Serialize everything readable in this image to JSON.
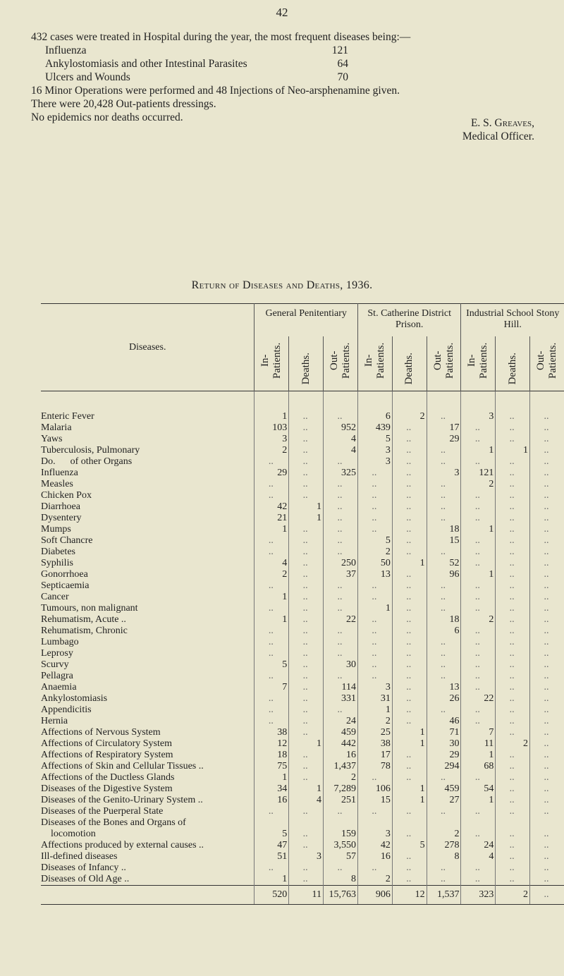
{
  "page_number": "42",
  "intro": {
    "line1": "432 cases were treated in Hospital during the year, the most frequent diseases being:—",
    "items": [
      {
        "label": "Influenza",
        "value": "121"
      },
      {
        "label": "Ankylostomiasis and other Intestinal Parasites",
        "value": "64"
      },
      {
        "label": "Ulcers and Wounds",
        "value": "70"
      }
    ],
    "line2": "16 Minor Operations were performed and 48 Injections of Neo-arsphenamine given.",
    "line3": "There were 20,428 Out-patients dressings.",
    "line4": "No epidemics nor deaths occurred."
  },
  "signature": {
    "name": "E. S. Greaves,",
    "title": "Medical Officer."
  },
  "table_title": "Return of Diseases and Deaths, 1936.",
  "table": {
    "diseases_header": "Diseases.",
    "groups": [
      "General Penitentiary",
      "St. Catherine District Prison.",
      "Industrial School Stony Hill."
    ],
    "subcols": [
      "In-Patients.",
      "Deaths.",
      "Out-Patients."
    ],
    "rows": [
      [
        "Enteric Fever",
        "1",
        "..",
        "..",
        "6",
        "2",
        "..",
        "3",
        "..",
        ".."
      ],
      [
        "Malaria",
        "103",
        "..",
        "952",
        "439",
        "..",
        "17",
        "..",
        "..",
        ".."
      ],
      [
        "Yaws",
        "3",
        "..",
        "4",
        "5",
        "..",
        "29",
        "..",
        "..",
        ".."
      ],
      [
        "Tuberculosis, Pulmonary",
        "2",
        "..",
        "4",
        "3",
        "..",
        "..",
        "1",
        "1",
        ".."
      ],
      [
        "Do.      of other Organs",
        "..",
        "..",
        "..",
        "3",
        "..",
        "..",
        "..",
        "..",
        ".."
      ],
      [
        "Influenza",
        "29",
        "..",
        "325",
        "..",
        "..",
        "3",
        "121",
        "..",
        ".."
      ],
      [
        "Measles",
        "..",
        "..",
        "..",
        "..",
        "..",
        "..",
        "2",
        "..",
        ".."
      ],
      [
        "Chicken Pox",
        "..",
        "..",
        "..",
        "..",
        "..",
        "..",
        "..",
        "..",
        ".."
      ],
      [
        "Diarrhoea",
        "42",
        "1",
        "..",
        "..",
        "..",
        "..",
        "..",
        "..",
        ".."
      ],
      [
        "Dysentery",
        "21",
        "1",
        "..",
        "..",
        "..",
        "..",
        "..",
        "..",
        ".."
      ],
      [
        "Mumps",
        "1",
        "..",
        "..",
        "..",
        "..",
        "18",
        "1",
        "..",
        ".."
      ],
      [
        "Soft Chancre",
        "..",
        "..",
        "..",
        "5",
        "..",
        "15",
        "..",
        "..",
        ".."
      ],
      [
        "Diabetes",
        "..",
        "..",
        "..",
        "2",
        "..",
        "..",
        "..",
        "..",
        ".."
      ],
      [
        "Syphilis",
        "4",
        "..",
        "250",
        "50",
        "1",
        "52",
        "..",
        "..",
        ".."
      ],
      [
        "Gonorrhoea",
        "2",
        "..",
        "37",
        "13",
        "..",
        "96",
        "1",
        "..",
        ".."
      ],
      [
        "Septicaemia",
        "..",
        "..",
        "..",
        "..",
        "..",
        "..",
        "..",
        "..",
        ".."
      ],
      [
        "Cancer",
        "1",
        "..",
        "..",
        "..",
        "..",
        "..",
        "..",
        "..",
        ".."
      ],
      [
        "Tumours, non malignant",
        "..",
        "..",
        "..",
        "1",
        "..",
        "..",
        "..",
        "..",
        ".."
      ],
      [
        "Rehumatism, Acute ..",
        "1",
        "..",
        "22",
        "..",
        "..",
        "18",
        "2",
        "..",
        ".."
      ],
      [
        "Rehumatism, Chronic",
        "..",
        "..",
        "..",
        "..",
        "..",
        "6",
        "..",
        "..",
        ".."
      ],
      [
        "Lumbago",
        "..",
        "..",
        "..",
        "..",
        "..",
        "..",
        "..",
        "..",
        ".."
      ],
      [
        "Leprosy",
        "..",
        "..",
        "..",
        "..",
        "..",
        "..",
        "..",
        "..",
        ".."
      ],
      [
        "Scurvy",
        "5",
        "..",
        "30",
        "..",
        "..",
        "..",
        "..",
        "..",
        ".."
      ],
      [
        "Pellagra",
        "..",
        "..",
        "..",
        "..",
        "..",
        "..",
        "..",
        "..",
        ".."
      ],
      [
        "Anaemia",
        "7",
        "..",
        "114",
        "3",
        "..",
        "13",
        "..",
        "..",
        ".."
      ],
      [
        "Ankylostomiasis",
        "..",
        "..",
        "331",
        "31",
        "..",
        "26",
        "22",
        "..",
        ".."
      ],
      [
        "Appendicitis",
        "..",
        "..",
        "..",
        "1",
        "..",
        "..",
        "..",
        "..",
        ".."
      ],
      [
        "Hernia",
        "..",
        "..",
        "24",
        "2",
        "..",
        "46",
        "..",
        "..",
        ".."
      ],
      [
        "Affections of Nervous System",
        "38",
        "..",
        "459",
        "25",
        "1",
        "71",
        "7",
        "..",
        ".."
      ],
      [
        "Affections of Circulatory System",
        "12",
        "1",
        "442",
        "38",
        "1",
        "30",
        "11",
        "2",
        ".."
      ],
      [
        "Affections of Respiratory System",
        "18",
        "..",
        "16",
        "17",
        "..",
        "29",
        "1",
        "..",
        ".."
      ],
      [
        "Affections of Skin and Cellular Tissues ..",
        "75",
        "..",
        "1,437",
        "78",
        "..",
        "294",
        "68",
        "..",
        ".."
      ],
      [
        "Affections of the Ductless Glands",
        "1",
        "..",
        "2",
        "..",
        "..",
        "..",
        "..",
        "..",
        ".."
      ],
      [
        "Diseases of the Digestive System",
        "34",
        "1",
        "7,289",
        "106",
        "1",
        "459",
        "54",
        "..",
        ".."
      ],
      [
        "Diseases of the Genito-Urinary System ..",
        "16",
        "4",
        "251",
        "15",
        "1",
        "27",
        "1",
        "..",
        ".."
      ],
      [
        "Diseases of the Puerperal State",
        "..",
        "..",
        "..",
        "..",
        "..",
        "..",
        "..",
        "..",
        ".."
      ],
      [
        "Diseases of the Bones and Organs of",
        "",
        "",
        "",
        "",
        "",
        "",
        "",
        "",
        ""
      ],
      [
        "    locomotion",
        "5",
        "..",
        "159",
        "3",
        "..",
        "2",
        "..",
        "..",
        ".."
      ],
      [
        "Affections produced by external causes ..",
        "47",
        "..",
        "3,550",
        "42",
        "5",
        "278",
        "24",
        "..",
        ".."
      ],
      [
        "Ill-defined diseases",
        "51",
        "3",
        "57",
        "16",
        "..",
        "8",
        "4",
        "..",
        ".."
      ],
      [
        "Diseases of Infancy ..",
        "..",
        "..",
        "..",
        "..",
        "..",
        "..",
        "..",
        "..",
        ".."
      ],
      [
        "Diseases of Old Age ..",
        "1",
        "..",
        "8",
        "2",
        "..",
        "..",
        "..",
        "..",
        ".."
      ]
    ],
    "totals": [
      "520",
      "11",
      "15,763",
      "906",
      "12",
      "1,537",
      "323",
      "2",
      ".."
    ]
  }
}
